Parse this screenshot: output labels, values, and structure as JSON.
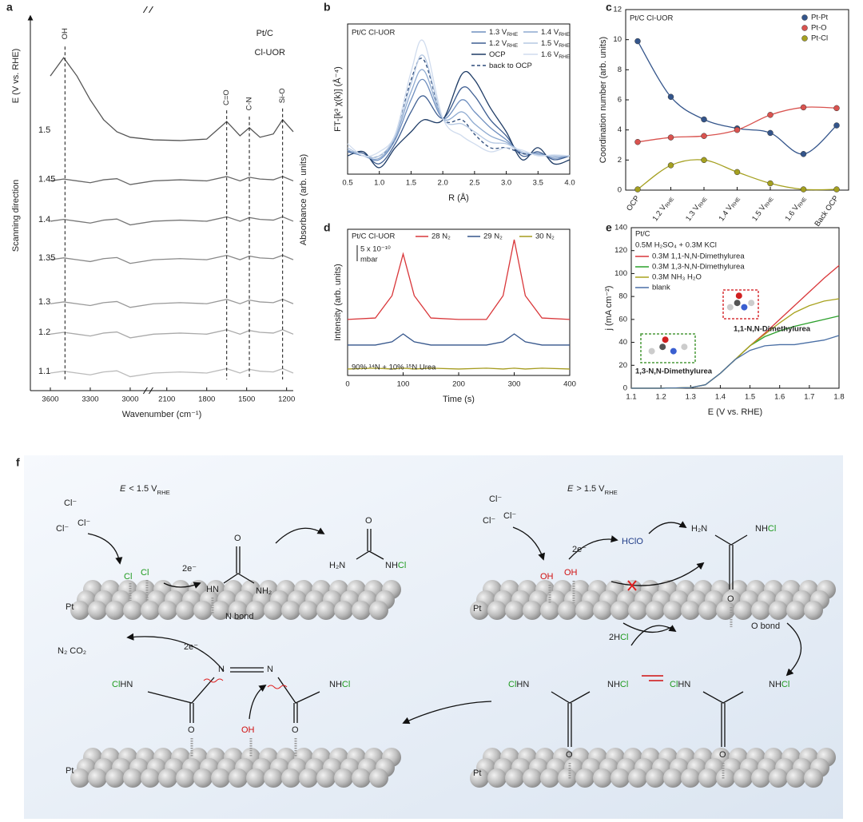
{
  "chart_data": [
    {
      "panel": "a",
      "type": "line",
      "title": "Pt/C",
      "subtitle": "Cl-UOR",
      "y_label": "E (V vs. RHE)",
      "direction_label": "Scanning direction",
      "y_label_right": "Absorbance (arb. units)",
      "x_label": "Wavenumber (cm⁻¹)",
      "x": [
        3600,
        3500,
        3400,
        3300,
        3200,
        3100,
        3000,
        2200,
        2000,
        1800,
        1650,
        1550,
        1480,
        1400,
        1300,
        1230,
        1150
      ],
      "xlim": [
        3750,
        1150
      ],
      "xbreak": [
        2865,
        2240
      ],
      "xticks": [
        3600,
        3300,
        3000,
        2100,
        1800,
        1500,
        1200
      ],
      "ylim": [
        0,
        10
      ],
      "series": [
        {
          "name": "1.5",
          "color": "#555555",
          "values": [
            8.58,
            9.08,
            8.58,
            7.93,
            7.39,
            7.06,
            6.91,
            6.84,
            6.82,
            6.86,
            7.34,
            6.95,
            7.17,
            6.91,
            7.0,
            7.39,
            7.06
          ]
        },
        {
          "name": "1.45",
          "color": "#666666",
          "values": [
            5.72,
            5.77,
            5.72,
            5.67,
            5.75,
            5.78,
            5.62,
            5.72,
            5.75,
            5.72,
            5.84,
            5.72,
            5.82,
            5.77,
            5.75,
            5.84,
            5.72
          ]
        },
        {
          "name": "1.4",
          "color": "#777777",
          "values": [
            4.62,
            4.67,
            4.62,
            4.57,
            4.65,
            4.68,
            4.52,
            4.62,
            4.65,
            4.62,
            4.74,
            4.62,
            4.72,
            4.67,
            4.65,
            4.74,
            4.62
          ]
        },
        {
          "name": "1.35",
          "color": "#888888",
          "values": [
            3.57,
            3.62,
            3.57,
            3.52,
            3.6,
            3.63,
            3.47,
            3.57,
            3.6,
            3.57,
            3.69,
            3.57,
            3.67,
            3.62,
            3.6,
            3.69,
            3.57
          ]
        },
        {
          "name": "1.3",
          "color": "#999999",
          "values": [
            2.37,
            2.42,
            2.37,
            2.32,
            2.4,
            2.43,
            2.27,
            2.37,
            2.4,
            2.37,
            2.49,
            2.37,
            2.47,
            2.42,
            2.4,
            2.49,
            2.37
          ]
        },
        {
          "name": "1.2",
          "color": "#aaaaaa",
          "values": [
            1.54,
            1.59,
            1.54,
            1.49,
            1.57,
            1.6,
            1.44,
            1.54,
            1.57,
            1.54,
            1.66,
            1.54,
            1.64,
            1.59,
            1.57,
            1.66,
            1.54
          ]
        },
        {
          "name": "1.1",
          "color": "#bbbbbb",
          "values": [
            0.48,
            0.53,
            0.48,
            0.43,
            0.51,
            0.54,
            0.38,
            0.48,
            0.51,
            0.48,
            0.6,
            0.48,
            0.58,
            0.53,
            0.51,
            0.6,
            0.48
          ]
        }
      ],
      "annotations": [
        {
          "text": "OH",
          "x": 3490
        },
        {
          "text": "C=O",
          "x": 1650
        },
        {
          "text": "C-N",
          "x": 1480
        },
        {
          "text": "Si-O",
          "x": 1230
        }
      ]
    },
    {
      "panel": "b",
      "type": "line",
      "title": "Pt/C Cl-UOR",
      "x_label": "R (Å)",
      "y_label": "FT-[k³ χ(k)] (Å⁻⁴)",
      "x": [
        0.5,
        0.75,
        1.0,
        1.25,
        1.5,
        1.7,
        2.0,
        2.3,
        2.5,
        2.75,
        3.0,
        3.25,
        3.5,
        3.75,
        4.0
      ],
      "xlim": [
        0.5,
        4.0
      ],
      "xticks": [
        0.5,
        {
          "value": 1,
          "label": "1.0"
        },
        1.5,
        {
          "value": 2,
          "label": "2.0"
        },
        2.5,
        {
          "value": 3,
          "label": "3.0"
        },
        3.5,
        {
          "value": 4,
          "label": "4.0"
        }
      ],
      "ylim": [
        0,
        10
      ],
      "series": [
        {
          "name": "1.3 V",
          "name_sub": "RHE",
          "color": "#6f8fbf",
          "values": [
            1.49,
            1.22,
            0.96,
            2.29,
            4.95,
            6.28,
            3.72,
            4.95,
            4.15,
            3.09,
            2.29,
            1.38,
            1.38,
            1.06,
            1.22
          ]
        },
        {
          "name": "1.2 V",
          "name_sub": "RHE",
          "color": "#3f5f92",
          "values": [
            1.49,
            1.38,
            0.69,
            2.02,
            4.15,
            5.21,
            3.72,
            5.74,
            5.21,
            3.62,
            2.55,
            1.22,
            1.49,
            0.96,
            1.22
          ]
        },
        {
          "name": "OCP",
          "color": "#1f3c66",
          "values": [
            1.22,
            1.49,
            0.43,
            1.76,
            2.82,
            3.62,
            3.62,
            6.65,
            6.28,
            4.41,
            2.82,
            0.96,
            1.76,
            0.69,
            0.96
          ]
        },
        {
          "name": "back to OCP",
          "color": "#2b4a7a",
          "dash": true,
          "values": [
            1.6,
            1.22,
            1.22,
            2.45,
            6.28,
            7.61,
            3.72,
            3.62,
            2.66,
            1.76,
            1.76,
            1.38,
            1.28,
            1.22,
            1.22
          ]
        },
        {
          "name": "1.4 V",
          "name_sub": "RHE",
          "color": "#8eaad0",
          "values": [
            1.6,
            1.22,
            1.06,
            2.45,
            5.48,
            6.91,
            3.72,
            4.15,
            3.35,
            2.55,
            2.13,
            1.49,
            1.33,
            1.17,
            1.22
          ]
        },
        {
          "name": "1.5 V",
          "name_sub": "RHE",
          "color": "#b5c8e2",
          "values": [
            1.76,
            1.22,
            1.22,
            2.55,
            6.01,
            7.87,
            3.72,
            3.35,
            2.82,
            2.13,
            2.02,
            1.49,
            1.28,
            1.22,
            1.22
          ]
        },
        {
          "name": "1.6 V",
          "name_sub": "RHE",
          "color": "#d0dcee",
          "values": [
            2.02,
            1.22,
            1.49,
            2.66,
            6.81,
            8.83,
            3.72,
            2.55,
            2.02,
            1.49,
            1.76,
            1.6,
            1.22,
            1.28,
            1.22
          ]
        }
      ]
    },
    {
      "panel": "c",
      "type": "scatter",
      "title": "Pt/C Cl-UOR",
      "y_label": "Coordination number (arb. units)",
      "categories": [
        "OCP",
        "1.2 V",
        "1.3 V",
        "1.4 V",
        "1.5 V",
        "1.6 V",
        "Back OCP"
      ],
      "category_subs": [
        null,
        "RHE",
        "RHE",
        "RHE",
        "RHE",
        "RHE",
        null
      ],
      "ylim": [
        0,
        12
      ],
      "yticks": [
        0,
        2,
        4,
        6,
        8,
        10,
        12
      ],
      "series": [
        {
          "name": "Pt-Pt",
          "color": "#34558b",
          "values": [
            9.9,
            6.2,
            4.7,
            4.1,
            3.8,
            2.4,
            4.3
          ]
        },
        {
          "name": "Pt-O",
          "color": "#d9534f",
          "values": [
            3.2,
            3.5,
            3.6,
            4.0,
            5.0,
            5.5,
            5.45
          ]
        },
        {
          "name": "Pt-Cl",
          "color": "#a5a020",
          "values": [
            0.05,
            1.65,
            2.0,
            1.2,
            0.45,
            0.05,
            0.05
          ]
        }
      ]
    },
    {
      "panel": "d",
      "type": "line",
      "title": "Pt/C Cl-UOR",
      "x_label": "Time (s)",
      "y_label": "Intensity (arb. units)",
      "scale_label": "5 x 10⁻¹⁰",
      "scale_unit": "mbar",
      "note": "90% ¹⁴N + 10% ¹⁵N Urea",
      "x": [
        0,
        50,
        80,
        100,
        120,
        150,
        200,
        250,
        280,
        300,
        320,
        350,
        400
      ],
      "xlim": [
        0,
        400
      ],
      "xticks": [
        0,
        100,
        200,
        300,
        400
      ],
      "ylim": [
        0,
        10
      ],
      "series": [
        {
          "name": "28 N₂",
          "color": "#d9373a",
          "values": [
            3.83,
            3.93,
            5.46,
            8.31,
            5.46,
            3.93,
            3.83,
            3.83,
            5.46,
            9.29,
            5.46,
            3.93,
            3.83
          ]
        },
        {
          "name": "29 N₂",
          "color": "#34558b",
          "values": [
            2.08,
            2.08,
            2.3,
            2.84,
            2.3,
            2.08,
            2.08,
            2.08,
            2.3,
            2.84,
            2.3,
            2.08,
            2.08
          ]
        },
        {
          "name": "30 N₂",
          "color": "#a59b1e",
          "values": [
            0.44,
            0.5,
            0.44,
            0.5,
            0.44,
            0.5,
            0.44,
            0.5,
            0.44,
            0.5,
            0.44,
            0.5,
            0.44
          ]
        }
      ]
    },
    {
      "panel": "e",
      "type": "line",
      "title": "Pt/C",
      "subtitle": "0.5M H₂SO₄ + 0.3M KCl",
      "x_label": "E (V vs. RHE)",
      "y_label": "j (mA cm⁻²)",
      "molecule_labels": [
        "1,1-N,N-Dimethylurea",
        "1,3-N,N-Dimethylurea"
      ],
      "x": [
        1.1,
        1.2,
        1.3,
        1.35,
        1.4,
        1.45,
        1.5,
        1.55,
        1.6,
        1.65,
        1.7,
        1.75,
        1.8
      ],
      "xlim": [
        1.1,
        1.8
      ],
      "xticks": [
        1.1,
        1.2,
        1.3,
        1.4,
        1.5,
        1.6,
        1.7,
        1.8
      ],
      "ylim": [
        0,
        140
      ],
      "yticks": [
        0,
        20,
        40,
        60,
        80,
        100,
        120,
        140
      ],
      "series": [
        {
          "name": "0.3M 1,1-N,N-Dimethylurea",
          "color": "#d9373a",
          "values": [
            0,
            0,
            0.5,
            3,
            13,
            25,
            37,
            48,
            60,
            72,
            84,
            96,
            107
          ]
        },
        {
          "name": "0.3M 1,3-N,N-Dimethylurea",
          "color": "#2ca02c",
          "values": [
            0,
            0,
            0.5,
            3,
            13,
            25,
            37,
            45,
            50,
            54,
            57,
            60,
            63
          ]
        },
        {
          "name": "0.3M NH₃ H₂O",
          "color": "#a8a21e",
          "values": [
            0,
            0,
            0.5,
            3,
            13,
            25,
            37,
            47,
            57,
            66,
            72,
            76,
            78
          ]
        },
        {
          "name": "blank",
          "color": "#4a6fa5",
          "values": [
            0,
            0,
            0.5,
            3,
            13,
            25,
            33,
            37,
            38,
            38,
            40,
            42,
            46
          ]
        }
      ]
    }
  ],
  "diagram": {
    "panel": "f",
    "E": "E",
    "low_text": "< 1.5 V",
    "high_text": "> 1.5 V",
    "sub": "RHE",
    "pt": "Pt",
    "chloride": "Cl⁻",
    "cl": "Cl",
    "electrons": "2e⁻",
    "oh": "OH",
    "hclo": "HClO",
    "n_bond": "N bond",
    "o_bond": "O bond",
    "two_h": "2H",
    "products": "N₂ CO₂",
    "o": "O",
    "hn": "HN",
    "nh2": "NH₂",
    "h2n": "H₂N",
    "nh": "NH",
    "n": "N"
  }
}
